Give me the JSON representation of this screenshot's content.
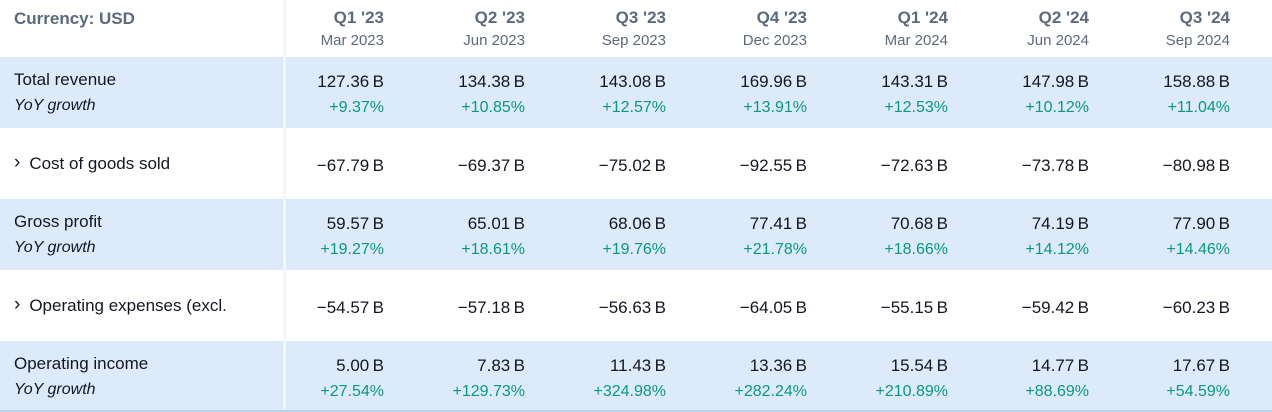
{
  "currency_label": "Currency: USD",
  "colors": {
    "row_shade": "#dceaf9",
    "positive_green": "#089981",
    "text_dark": "#131722",
    "header_gray_blue": "#5c6a7d",
    "bottom_line_blue": "#b4d3ee"
  },
  "columns": [
    {
      "quarter": "Q1 '23",
      "period": "Mar 2023"
    },
    {
      "quarter": "Q2 '23",
      "period": "Jun 2023"
    },
    {
      "quarter": "Q3 '23",
      "period": "Sep 2023"
    },
    {
      "quarter": "Q4 '23",
      "period": "Dec 2023"
    },
    {
      "quarter": "Q1 '24",
      "period": "Mar 2024"
    },
    {
      "quarter": "Q2 '24",
      "period": "Jun 2024"
    },
    {
      "quarter": "Q3 '24",
      "period": "Sep 2024"
    }
  ],
  "rows": [
    {
      "label": "Total revenue",
      "sub_label": "YoY growth",
      "expandable": false,
      "shaded": true,
      "values": [
        "127.36 B",
        "134.38 B",
        "143.08 B",
        "169.96 B",
        "143.31 B",
        "147.98 B",
        "158.88 B"
      ],
      "growth": [
        "+9.37%",
        "+10.85%",
        "+12.57%",
        "+13.91%",
        "+12.53%",
        "+10.12%",
        "+11.04%"
      ]
    },
    {
      "label": "Cost of goods sold",
      "expandable": true,
      "shaded": false,
      "values": [
        "−67.79 B",
        "−69.37 B",
        "−75.02 B",
        "−92.55 B",
        "−72.63 B",
        "−73.78 B",
        "−80.98 B"
      ]
    },
    {
      "label": "Gross profit",
      "sub_label": "YoY growth",
      "expandable": false,
      "shaded": true,
      "values": [
        "59.57 B",
        "65.01 B",
        "68.06 B",
        "77.41 B",
        "70.68 B",
        "74.19 B",
        "77.90 B"
      ],
      "growth": [
        "+19.27%",
        "+18.61%",
        "+19.76%",
        "+21.78%",
        "+18.66%",
        "+14.12%",
        "+14.46%"
      ]
    },
    {
      "label": "Operating expenses (excl.",
      "expandable": true,
      "shaded": false,
      "values": [
        "−54.57 B",
        "−57.18 B",
        "−56.63 B",
        "−64.05 B",
        "−55.15 B",
        "−59.42 B",
        "−60.23 B"
      ]
    },
    {
      "label": "Operating income",
      "sub_label": "YoY growth",
      "expandable": false,
      "shaded": true,
      "values": [
        "5.00 B",
        "7.83 B",
        "11.43 B",
        "13.36 B",
        "15.54 B",
        "14.77 B",
        "17.67 B"
      ],
      "growth": [
        "+27.54%",
        "+129.73%",
        "+324.98%",
        "+282.24%",
        "+210.89%",
        "+88.69%",
        "+54.59%"
      ]
    }
  ],
  "icons": {
    "chevron_right": "›"
  }
}
